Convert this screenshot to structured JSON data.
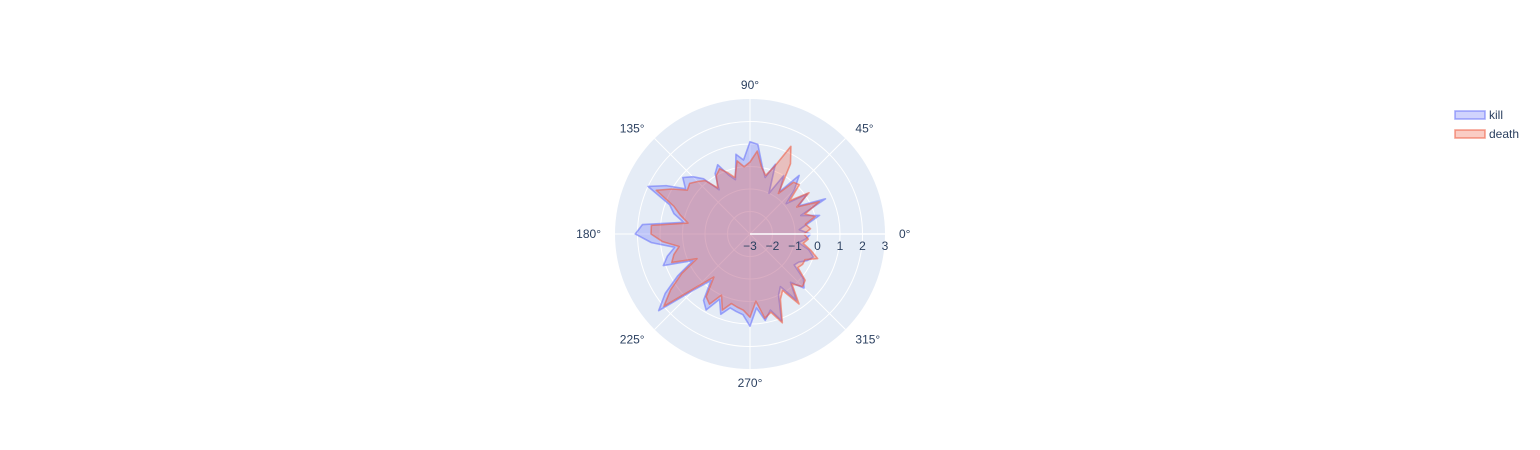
{
  "chart_data": {
    "type": "polar",
    "angular_ticks": [
      "0°",
      "45°",
      "90°",
      "135°",
      "180°",
      "225°",
      "270°",
      "315°"
    ],
    "angular_tick_values": [
      0,
      45,
      90,
      135,
      180,
      225,
      270,
      315
    ],
    "radial_range": [
      -3,
      3
    ],
    "radial_ticks": [
      -3,
      -2,
      -1,
      0,
      1,
      2,
      3
    ],
    "radial_tick_labels": [
      "−3",
      "−2",
      "−1",
      "0",
      "1",
      "2",
      "3"
    ],
    "grid": true,
    "legend_position": "top-right",
    "series": [
      {
        "name": "kill",
        "color": "#636efa",
        "theta": [
          0,
          5,
          10,
          15,
          20,
          25,
          30,
          35,
          40,
          45,
          50,
          55,
          60,
          65,
          70,
          75,
          80,
          85,
          90,
          95,
          100,
          105,
          110,
          115,
          120,
          125,
          130,
          135,
          140,
          145,
          150,
          155,
          160,
          165,
          170,
          175,
          180,
          185,
          190,
          195,
          200,
          205,
          210,
          215,
          220,
          225,
          230,
          235,
          240,
          245,
          250,
          255,
          260,
          265,
          270,
          275,
          280,
          285,
          290,
          295,
          300,
          305,
          310,
          315,
          320,
          325,
          330,
          335,
          340,
          345,
          350,
          355
        ],
        "r": [
          -0.3,
          -0.8,
          -0.4,
          0.2,
          -0.6,
          0.7,
          -0.5,
          0.1,
          -0.9,
          -0.2,
          0.4,
          -0.7,
          0.0,
          -1.0,
          0.3,
          -0.4,
          0.1,
          1.0,
          1.1,
          0.3,
          0.6,
          -0.5,
          -0.2,
          0.4,
          0.1,
          -0.6,
          0.2,
          0.6,
          0.9,
          0.5,
          1.3,
          2.0,
          0.8,
          0.5,
          0.0,
          1.8,
          2.1,
          1.4,
          0.4,
          0.8,
          1.1,
          -0.2,
          0.7,
          1.6,
          2.3,
          0.5,
          -0.3,
          0.6,
          0.9,
          0.2,
          0.8,
          0.4,
          0.5,
          0.6,
          1.1,
          0.3,
          0.9,
          0.5,
          1.1,
          0.0,
          -0.3,
          0.6,
          -0.2,
          0.4,
          0.1,
          -0.6,
          -0.5,
          -0.2,
          0.0,
          -0.3,
          -0.8,
          -0.5
        ]
      },
      {
        "name": "death",
        "color": "#ef553b",
        "theta": [
          0,
          5,
          10,
          15,
          20,
          25,
          30,
          35,
          40,
          45,
          50,
          55,
          60,
          65,
          70,
          75,
          80,
          85,
          90,
          95,
          100,
          105,
          110,
          115,
          120,
          125,
          130,
          135,
          140,
          145,
          150,
          155,
          160,
          165,
          170,
          175,
          180,
          185,
          190,
          195,
          200,
          205,
          210,
          215,
          220,
          225,
          230,
          235,
          240,
          245,
          250,
          255,
          260,
          265,
          270,
          275,
          280,
          285,
          290,
          295,
          300,
          305,
          310,
          315,
          320,
          325,
          330,
          335,
          340,
          345,
          350,
          355
        ],
        "r": [
          -0.6,
          -0.3,
          -0.5,
          0.0,
          -0.4,
          0.4,
          -0.6,
          0.2,
          -0.7,
          0.1,
          0.0,
          -0.8,
          0.6,
          1.3,
          0.2,
          -0.3,
          0.0,
          0.7,
          0.2,
          0.0,
          0.3,
          -0.4,
          -0.1,
          0.2,
          0.0,
          -0.5,
          0.1,
          0.3,
          0.5,
          0.4,
          1.0,
          1.6,
          0.6,
          0.2,
          -0.2,
          1.4,
          1.4,
          0.9,
          0.2,
          0.5,
          0.7,
          -0.4,
          0.5,
          1.3,
          2.0,
          0.3,
          -0.5,
          0.4,
          0.6,
          0.0,
          0.6,
          0.2,
          0.3,
          0.4,
          0.7,
          0.0,
          0.8,
          0.6,
          1.2,
          0.2,
          -0.1,
          0.8,
          -0.1,
          0.3,
          0.2,
          -0.4,
          -0.3,
          -0.3,
          0.2,
          -0.2,
          -0.6,
          -0.4
        ]
      }
    ]
  }
}
